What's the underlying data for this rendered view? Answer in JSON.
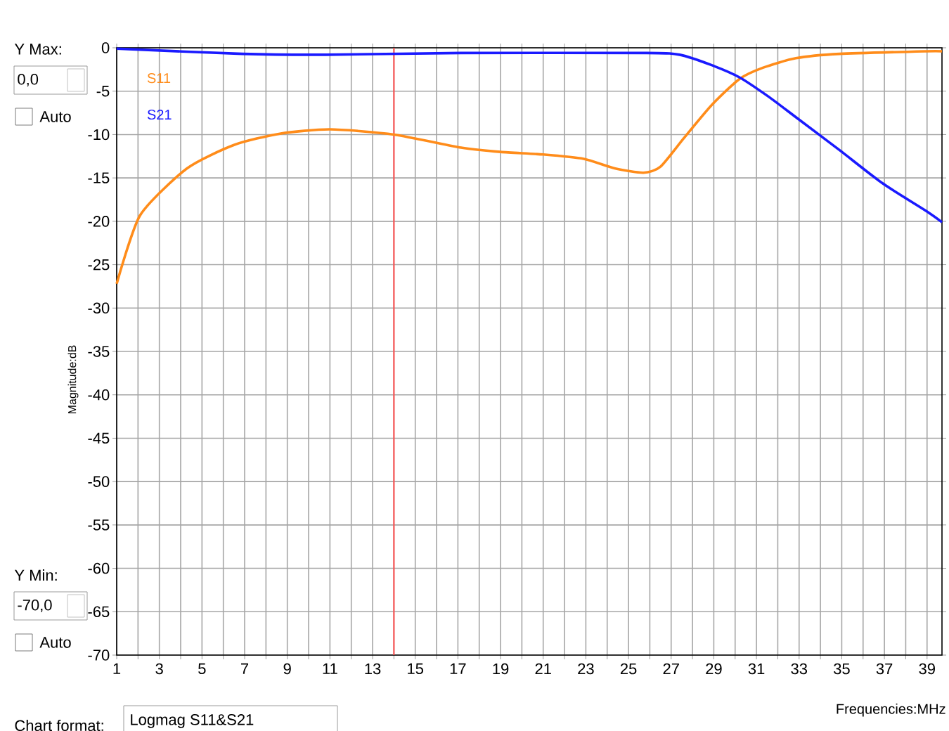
{
  "chart_data": {
    "type": "line",
    "xlabel": "Frequencies:MHz",
    "ylabel": "Magnitude:dB",
    "xlim": [
      1,
      39.7
    ],
    "ylim": [
      -70,
      0
    ],
    "xticks": [
      1,
      {
        "value": 2,
        "label": null
      },
      3,
      {
        "value": 4,
        "label": null
      },
      5,
      {
        "value": 6,
        "label": null
      },
      7,
      {
        "value": 8,
        "label": null
      },
      9,
      {
        "value": 10,
        "label": null
      },
      11,
      {
        "value": 12,
        "label": null
      },
      13,
      {
        "value": 14,
        "label": null
      },
      15,
      {
        "value": 16,
        "label": null
      },
      17,
      {
        "value": 18,
        "label": null
      },
      19,
      {
        "value": 20,
        "label": null
      },
      21,
      {
        "value": 22,
        "label": null
      },
      23,
      {
        "value": 24,
        "label": null
      },
      25,
      {
        "value": 26,
        "label": null
      },
      27,
      {
        "value": 28,
        "label": null
      },
      29,
      {
        "value": 30,
        "label": null
      },
      31,
      {
        "value": 32,
        "label": null
      },
      33,
      {
        "value": 34,
        "label": null
      },
      35,
      {
        "value": 36,
        "label": null
      },
      37,
      {
        "value": 38,
        "label": null
      },
      39
    ],
    "yticks": [
      0,
      -5,
      -10,
      -15,
      -20,
      -25,
      -30,
      -35,
      -40,
      -45,
      -50,
      -55,
      -60,
      -65,
      -70
    ],
    "grid": true,
    "legend": "top left",
    "marker": "none",
    "line_style": "solid",
    "ref_lines": [
      {
        "axis": "x",
        "value": 14,
        "color": "#ff4d4d"
      }
    ],
    "series": [
      {
        "name": "S11",
        "color": "#ff8c1a",
        "x": [
          1,
          2.1,
          4.3,
          6.5,
          8.65,
          11,
          14,
          17.15,
          19,
          21,
          22.9,
          24.35,
          25.7,
          26.5,
          27.6,
          28.9,
          30.2,
          31.3,
          32.85,
          34.9,
          38.95,
          39.7
        ],
        "values": [
          -27.2,
          -19.3,
          -13.9,
          -11.2,
          -9.9,
          -9.4,
          -10,
          -11.5,
          -12,
          -12.3,
          -12.8,
          -13.9,
          -14.4,
          -13.7,
          -10.4,
          -6.6,
          -3.6,
          -2.3,
          -1.2,
          -0.7,
          -0.4,
          -0.4
        ]
      },
      {
        "name": "S21",
        "color": "#1a1aff",
        "x": [
          1,
          6.9,
          10.8,
          17.15,
          25.85,
          27.4,
          28.9,
          30.2,
          31.55,
          32.85,
          34.9,
          36.9,
          38.95,
          39.7
        ],
        "values": [
          -0.1,
          -0.7,
          -0.8,
          -0.6,
          -0.6,
          -0.8,
          -2,
          -3.4,
          -5.6,
          -8,
          -11.8,
          -15.6,
          -18.8,
          -20.1
        ]
      }
    ],
    "annotations": [
      "Y Max:",
      "0,0",
      "Auto",
      "Y Min:",
      "-70,0",
      "Auto",
      "Chart format:",
      "Logmag S11&S21"
    ]
  }
}
